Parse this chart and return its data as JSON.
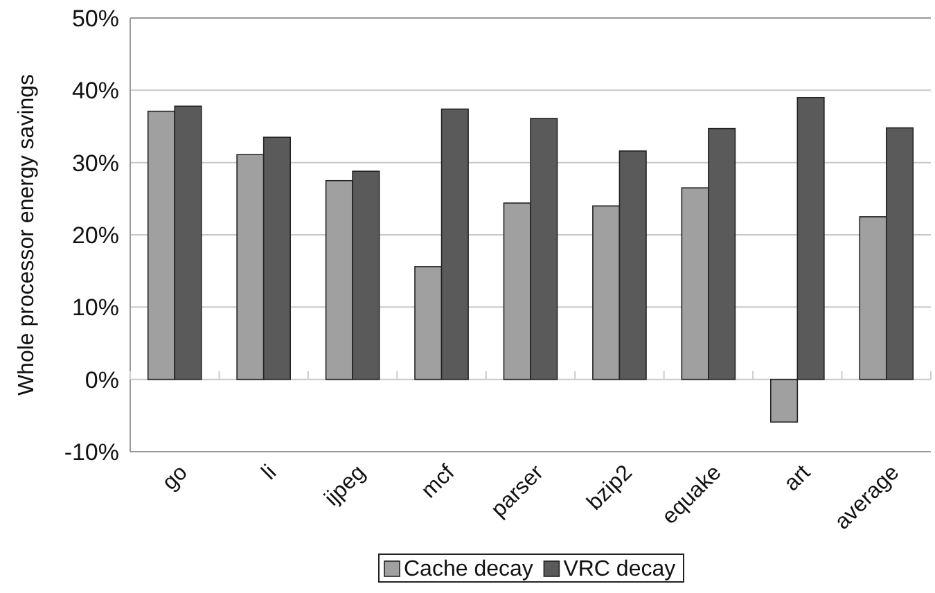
{
  "chart_data": {
    "type": "bar",
    "ylabel": "Whole processor energy savings",
    "categories": [
      "go",
      "li",
      "ijpeg",
      "mcf",
      "parser",
      "bzip2",
      "equake",
      "art",
      "average"
    ],
    "series": [
      {
        "name": "Cache decay",
        "color": "#a0a0a0",
        "values": [
          37.1,
          31.1,
          27.5,
          15.6,
          24.4,
          24.0,
          26.5,
          -5.9,
          22.5
        ]
      },
      {
        "name": "VRC decay",
        "color": "#5a5a5a",
        "values": [
          37.8,
          33.5,
          28.8,
          37.4,
          36.1,
          31.6,
          34.7,
          39.0,
          34.8
        ]
      }
    ],
    "ylim": [
      -10,
      50
    ],
    "yticks": [
      {
        "value": -10,
        "label": "-10%"
      },
      {
        "value": 0,
        "label": "0%"
      },
      {
        "value": 10,
        "label": "10%"
      },
      {
        "value": 20,
        "label": "20%"
      },
      {
        "value": 30,
        "label": "30%"
      },
      {
        "value": 40,
        "label": "40%"
      },
      {
        "value": 50,
        "label": "50%"
      }
    ],
    "grid": "y",
    "legend": "bottom"
  }
}
